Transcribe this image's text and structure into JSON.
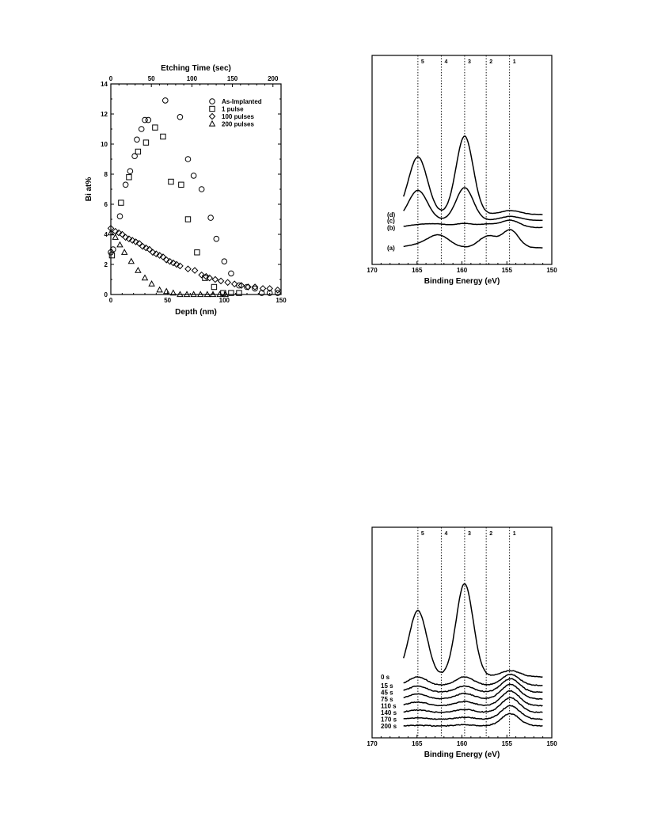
{
  "chart_data": [
    {
      "id": "depth-profile",
      "type": "scatter",
      "xlabel": "Depth (nm)",
      "x2label": "Etching Time (sec)",
      "ylabel": "Bi at%",
      "xlim": [
        0,
        150
      ],
      "x2lim": [
        0,
        210
      ],
      "ylim": [
        0,
        14
      ],
      "xticks": [
        "0",
        "50",
        "100",
        "150"
      ],
      "x2ticks": [
        "0",
        "50",
        "100",
        "150",
        "200"
      ],
      "yticks": [
        "0",
        "2",
        "4",
        "6",
        "8",
        "10",
        "12",
        "14"
      ],
      "legend_position": "top-right",
      "series": [
        {
          "name": "As-Implanted",
          "marker": "circle",
          "points": [
            [
              0,
              2.8
            ],
            [
              2,
              3.0
            ],
            [
              8,
              5.2
            ],
            [
              13,
              7.3
            ],
            [
              17,
              8.2
            ],
            [
              21,
              9.2
            ],
            [
              23,
              10.3
            ],
            [
              27,
              11.0
            ],
            [
              30,
              11.6
            ],
            [
              33,
              11.6
            ],
            [
              48,
              12.9
            ],
            [
              61,
              11.8
            ],
            [
              68,
              9.0
            ],
            [
              73,
              7.9
            ],
            [
              80,
              7.0
            ],
            [
              88,
              5.1
            ],
            [
              93,
              3.7
            ],
            [
              100,
              2.2
            ],
            [
              106,
              1.4
            ],
            [
              113,
              0.6
            ],
            [
              120,
              0.5
            ],
            [
              127,
              0.4
            ],
            [
              133,
              0.1
            ],
            [
              140,
              0.1
            ],
            [
              147,
              0.1
            ]
          ]
        },
        {
          "name": "1 pulse",
          "marker": "square",
          "points": [
            [
              1,
              2.6
            ],
            [
              9,
              6.1
            ],
            [
              16,
              7.8
            ],
            [
              24,
              9.5
            ],
            [
              31,
              10.1
            ],
            [
              39,
              11.1
            ],
            [
              46,
              10.5
            ],
            [
              53,
              7.5
            ],
            [
              62,
              7.3
            ],
            [
              68,
              5.0
            ],
            [
              76,
              2.8
            ],
            [
              83,
              1.1
            ],
            [
              91,
              0.5
            ],
            [
              99,
              0.1
            ],
            [
              106,
              0.1
            ],
            [
              113,
              0.1
            ]
          ]
        },
        {
          "name": "100 pulses",
          "marker": "diamond",
          "points": [
            [
              0,
              4.4
            ],
            [
              4,
              4.2
            ],
            [
              7,
              4.1
            ],
            [
              10,
              4.0
            ],
            [
              13,
              3.8
            ],
            [
              16,
              3.7
            ],
            [
              19,
              3.6
            ],
            [
              22,
              3.5
            ],
            [
              25,
              3.4
            ],
            [
              28,
              3.2
            ],
            [
              31,
              3.1
            ],
            [
              34,
              3.0
            ],
            [
              37,
              2.8
            ],
            [
              40,
              2.7
            ],
            [
              43,
              2.6
            ],
            [
              46,
              2.5
            ],
            [
              49,
              2.3
            ],
            [
              52,
              2.2
            ],
            [
              55,
              2.1
            ],
            [
              58,
              2.0
            ],
            [
              61,
              1.9
            ],
            [
              68,
              1.7
            ],
            [
              74,
              1.6
            ],
            [
              80,
              1.3
            ],
            [
              84,
              1.2
            ],
            [
              87,
              1.1
            ],
            [
              92,
              1.0
            ],
            [
              97,
              0.9
            ],
            [
              103,
              0.8
            ],
            [
              109,
              0.7
            ],
            [
              115,
              0.6
            ],
            [
              121,
              0.5
            ],
            [
              127,
              0.5
            ],
            [
              134,
              0.4
            ],
            [
              140,
              0.4
            ],
            [
              147,
              0.3
            ]
          ]
        },
        {
          "name": "200 pulses",
          "marker": "triangle",
          "points": [
            [
              0,
              4.1
            ],
            [
              4,
              3.8
            ],
            [
              8,
              3.3
            ],
            [
              12,
              2.8
            ],
            [
              18,
              2.2
            ],
            [
              24,
              1.6
            ],
            [
              30,
              1.1
            ],
            [
              36,
              0.7
            ],
            [
              43,
              0.3
            ],
            [
              49,
              0.2
            ],
            [
              55,
              0.1
            ],
            [
              61,
              0.0
            ],
            [
              67,
              0.0
            ],
            [
              73,
              0.0
            ],
            [
              79,
              0.0
            ],
            [
              85,
              0.0
            ],
            [
              90,
              0.0
            ],
            [
              96,
              0.0
            ],
            [
              101,
              0.0
            ]
          ]
        }
      ]
    },
    {
      "id": "xps-spectra-top",
      "type": "line",
      "xlabel": "Binding Energy (eV)",
      "xlim": [
        170,
        150
      ],
      "xticks": [
        "170",
        "165",
        "160",
        "155",
        "150"
      ],
      "reference_lines": [
        {
          "label": "5",
          "x": 164.9
        },
        {
          "label": "4",
          "x": 162.3
        },
        {
          "label": "3",
          "x": 159.7
        },
        {
          "label": "2",
          "x": 157.3
        },
        {
          "label": "1",
          "x": 154.7
        }
      ],
      "series": [
        {
          "name": "(a)",
          "offset": 0,
          "peaks": [
            [
              164.9,
              0.2,
              1.3
            ],
            [
              162.6,
              0.95,
              1.2
            ],
            [
              157.1,
              0.9,
              1.0
            ],
            [
              154.6,
              1.35,
              0.9
            ]
          ]
        },
        {
          "name": "(b)",
          "offset": 1.55,
          "peaks": [
            [
              164.9,
              0.2,
              1.2
            ],
            [
              162.6,
              0.25,
              1.2
            ],
            [
              159.7,
              0.3,
              1.0
            ],
            [
              157.1,
              0.25,
              1.0
            ],
            [
              154.6,
              0.55,
              1.0
            ]
          ]
        },
        {
          "name": "(c)",
          "offset": 2.1,
          "peaks": [
            [
              164.9,
              2.3,
              1.05
            ],
            [
              159.7,
              2.5,
              0.95
            ],
            [
              154.6,
              0.3,
              1.1
            ]
          ]
        },
        {
          "name": "(d)",
          "offset": 2.55,
          "peaks": [
            [
              164.9,
              4.4,
              1.05
            ],
            [
              159.7,
              6.0,
              0.95
            ],
            [
              154.6,
              0.3,
              1.1
            ]
          ]
        }
      ]
    },
    {
      "id": "xps-spectra-etching",
      "type": "line",
      "xlabel": "Binding Energy (eV)",
      "xlim": [
        170,
        150
      ],
      "xticks": [
        "170",
        "165",
        "160",
        "155",
        "150"
      ],
      "reference_lines": [
        {
          "label": "5",
          "x": 164.9
        },
        {
          "label": "4",
          "x": 162.3
        },
        {
          "label": "3",
          "x": 159.7
        },
        {
          "label": "2",
          "x": 157.3
        },
        {
          "label": "1",
          "x": 154.7
        }
      ],
      "series": [
        {
          "name": "200 s",
          "offset": 0,
          "peaks": [
            [
              164.9,
              0.05,
              1.0
            ],
            [
              159.7,
              0.1,
              1.0
            ],
            [
              154.6,
              1.0,
              1.0
            ]
          ]
        },
        {
          "name": "170 s",
          "offset": 0.55,
          "peaks": [
            [
              164.9,
              0.1,
              1.0
            ],
            [
              159.7,
              0.15,
              1.0
            ],
            [
              154.6,
              1.1,
              1.0
            ]
          ]
        },
        {
          "name": "140 s",
          "offset": 1.1,
          "peaks": [
            [
              164.9,
              0.2,
              1.0
            ],
            [
              159.7,
              0.25,
              1.0
            ],
            [
              154.6,
              1.2,
              1.0
            ]
          ]
        },
        {
          "name": "110 s",
          "offset": 1.65,
          "peaks": [
            [
              164.9,
              0.3,
              1.0
            ],
            [
              159.7,
              0.35,
              1.0
            ],
            [
              154.6,
              1.2,
              1.0
            ]
          ]
        },
        {
          "name": "75 s",
          "offset": 2.2,
          "peaks": [
            [
              164.9,
              0.4,
              1.0
            ],
            [
              159.7,
              0.45,
              1.0
            ],
            [
              154.6,
              1.2,
              1.0
            ]
          ]
        },
        {
          "name": "45 s",
          "offset": 2.75,
          "peaks": [
            [
              164.9,
              0.5,
              1.0
            ],
            [
              159.7,
              0.5,
              1.0
            ],
            [
              154.6,
              1.1,
              1.0
            ]
          ]
        },
        {
          "name": "15 s",
          "offset": 3.3,
          "peaks": [
            [
              164.9,
              0.7,
              1.0
            ],
            [
              159.7,
              0.7,
              1.0
            ],
            [
              154.6,
              0.9,
              1.0
            ]
          ]
        },
        {
          "name": "0 s",
          "offset": 4.0,
          "peaks": [
            [
              164.9,
              5.4,
              1.0
            ],
            [
              159.7,
              7.6,
              0.95
            ],
            [
              154.6,
              0.5,
              1.1
            ]
          ]
        }
      ]
    }
  ]
}
